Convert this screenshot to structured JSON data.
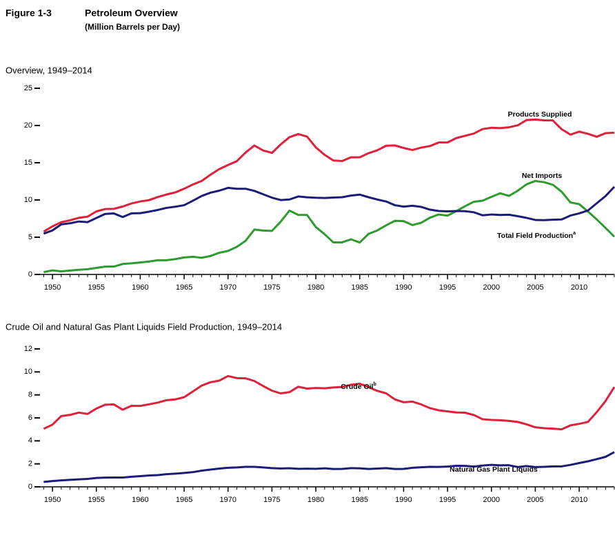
{
  "header": {
    "figure": "Figure 1-3",
    "title": "Petroleum Overview",
    "subtitle": "(Million Barrels per Day)"
  },
  "chart_data": [
    {
      "type": "line",
      "title": "Overview, 1949–2014",
      "x": [
        1949,
        1950,
        1951,
        1952,
        1953,
        1954,
        1955,
        1956,
        1957,
        1958,
        1959,
        1960,
        1961,
        1962,
        1963,
        1964,
        1965,
        1966,
        1967,
        1968,
        1969,
        1970,
        1971,
        1972,
        1973,
        1974,
        1975,
        1976,
        1977,
        1978,
        1979,
        1980,
        1981,
        1982,
        1983,
        1984,
        1985,
        1986,
        1987,
        1988,
        1989,
        1990,
        1991,
        1992,
        1993,
        1994,
        1995,
        1996,
        1997,
        1998,
        1999,
        2000,
        2001,
        2002,
        2003,
        2004,
        2005,
        2006,
        2007,
        2008,
        2009,
        2010,
        2011,
        2012,
        2013,
        2014
      ],
      "series": [
        {
          "name": "Products Supplied",
          "color": "#e0203a",
          "values": [
            5.76,
            6.46,
            7.02,
            7.27,
            7.6,
            7.76,
            8.46,
            8.78,
            8.81,
            9.12,
            9.53,
            9.8,
            9.98,
            10.4,
            10.74,
            11.02,
            11.51,
            12.08,
            12.56,
            13.39,
            14.14,
            14.7,
            15.21,
            16.37,
            17.31,
            16.65,
            16.32,
            17.46,
            18.43,
            18.85,
            18.51,
            17.06,
            16.06,
            15.3,
            15.23,
            15.73,
            15.73,
            16.28,
            16.67,
            17.28,
            17.33,
            16.99,
            16.71,
            17.03,
            17.24,
            17.72,
            17.72,
            18.31,
            18.62,
            18.92,
            19.52,
            19.7,
            19.65,
            19.76,
            20.03,
            20.73,
            20.8,
            20.69,
            20.68,
            19.5,
            18.77,
            19.18,
            18.88,
            18.49,
            18.97,
            19.03
          ]
        },
        {
          "name": "Net Imports",
          "color": "#2e9b2e",
          "values": [
            0.32,
            0.55,
            0.42,
            0.52,
            0.63,
            0.7,
            0.88,
            1.05,
            1.06,
            1.41,
            1.49,
            1.61,
            1.74,
            1.91,
            1.91,
            2.06,
            2.28,
            2.37,
            2.24,
            2.48,
            2.91,
            3.16,
            3.7,
            4.52,
            6.03,
            5.89,
            5.85,
            7.09,
            8.57,
            8.0,
            7.99,
            6.37,
            5.4,
            4.3,
            4.31,
            4.72,
            4.29,
            5.44,
            5.91,
            6.59,
            7.2,
            7.16,
            6.63,
            6.94,
            7.62,
            8.05,
            7.89,
            8.5,
            9.16,
            9.76,
            9.91,
            10.42,
            10.9,
            10.55,
            11.24,
            12.1,
            12.55,
            12.39,
            12.04,
            11.11,
            9.67,
            9.44,
            8.45,
            7.39,
            6.24,
            5.07
          ]
        },
        {
          "name": "Total Field Production",
          "name_note": "a",
          "color": "#1c1c78",
          "values": [
            5.48,
            5.91,
            6.72,
            6.87,
            7.11,
            7.03,
            7.58,
            8.12,
            8.19,
            7.71,
            8.21,
            8.23,
            8.43,
            8.66,
            8.94,
            9.1,
            9.3,
            9.9,
            10.54,
            10.98,
            11.25,
            11.63,
            11.5,
            11.51,
            11.22,
            10.76,
            10.31,
            9.99,
            10.07,
            10.47,
            10.36,
            10.3,
            10.27,
            10.32,
            10.37,
            10.59,
            10.72,
            10.37,
            10.06,
            9.8,
            9.3,
            9.11,
            9.22,
            9.07,
            8.7,
            8.52,
            8.47,
            8.52,
            8.5,
            8.35,
            7.94,
            8.05,
            7.99,
            8.02,
            7.82,
            7.6,
            7.32,
            7.29,
            7.35,
            7.38,
            7.91,
            8.2,
            8.59,
            9.56,
            10.53,
            11.77
          ]
        }
      ],
      "xlim": [
        1948.5,
        2014
      ],
      "xticks": [
        1950,
        1955,
        1960,
        1965,
        1970,
        1975,
        1980,
        1985,
        1990,
        1995,
        2000,
        2005,
        2010
      ],
      "ylim": [
        0,
        25
      ],
      "yticks": [
        0,
        5,
        10,
        15,
        20,
        25
      ]
    },
    {
      "type": "line",
      "title": "Crude Oil and Natural Gas Plant Liquids Field Production, 1949–2014",
      "x": [
        1949,
        1950,
        1951,
        1952,
        1953,
        1954,
        1955,
        1956,
        1957,
        1958,
        1959,
        1960,
        1961,
        1962,
        1963,
        1964,
        1965,
        1966,
        1967,
        1968,
        1969,
        1970,
        1971,
        1972,
        1973,
        1974,
        1975,
        1976,
        1977,
        1978,
        1979,
        1980,
        1981,
        1982,
        1983,
        1984,
        1985,
        1986,
        1987,
        1988,
        1989,
        1990,
        1991,
        1992,
        1993,
        1994,
        1995,
        1996,
        1997,
        1998,
        1999,
        2000,
        2001,
        2002,
        2003,
        2004,
        2005,
        2006,
        2007,
        2008,
        2009,
        2010,
        2011,
        2012,
        2013,
        2014
      ],
      "series": [
        {
          "name": "Crude Oil",
          "name_note": "b",
          "color": "#e0203a",
          "values": [
            5.05,
            5.41,
            6.16,
            6.26,
            6.46,
            6.34,
            6.81,
            7.15,
            7.17,
            6.71,
            7.05,
            7.04,
            7.18,
            7.33,
            7.54,
            7.61,
            7.8,
            8.3,
            8.81,
            9.1,
            9.24,
            9.64,
            9.46,
            9.44,
            9.21,
            8.77,
            8.37,
            8.13,
            8.24,
            8.71,
            8.55,
            8.6,
            8.57,
            8.65,
            8.69,
            8.88,
            8.97,
            8.68,
            8.35,
            8.14,
            7.61,
            7.36,
            7.42,
            7.17,
            6.85,
            6.66,
            6.56,
            6.47,
            6.45,
            6.25,
            5.88,
            5.82,
            5.8,
            5.74,
            5.65,
            5.44,
            5.18,
            5.1,
            5.06,
            5.0,
            5.35,
            5.48,
            5.65,
            6.5,
            7.47,
            8.68
          ]
        },
        {
          "name": "Natural Gas Plant Liquids",
          "color": "#1c1c78",
          "values": [
            0.43,
            0.5,
            0.56,
            0.61,
            0.65,
            0.69,
            0.77,
            0.8,
            0.81,
            0.81,
            0.88,
            0.93,
            0.99,
            1.02,
            1.1,
            1.15,
            1.21,
            1.28,
            1.41,
            1.5,
            1.59,
            1.66,
            1.69,
            1.74,
            1.74,
            1.69,
            1.63,
            1.6,
            1.62,
            1.57,
            1.58,
            1.57,
            1.61,
            1.55,
            1.56,
            1.63,
            1.61,
            1.55,
            1.59,
            1.63,
            1.55,
            1.56,
            1.66,
            1.7,
            1.74,
            1.73,
            1.76,
            1.83,
            1.82,
            1.76,
            1.85,
            1.91,
            1.87,
            1.88,
            1.72,
            1.81,
            1.72,
            1.74,
            1.78,
            1.78,
            1.91,
            2.07,
            2.22,
            2.41,
            2.61,
            3.02
          ]
        }
      ],
      "xlim": [
        1948.5,
        2014
      ],
      "xticks": [
        1950,
        1955,
        1960,
        1965,
        1970,
        1975,
        1980,
        1985,
        1990,
        1995,
        2000,
        2005,
        2010
      ],
      "ylim": [
        0,
        12
      ],
      "yticks": [
        0,
        2,
        4,
        6,
        8,
        10,
        12
      ]
    }
  ]
}
